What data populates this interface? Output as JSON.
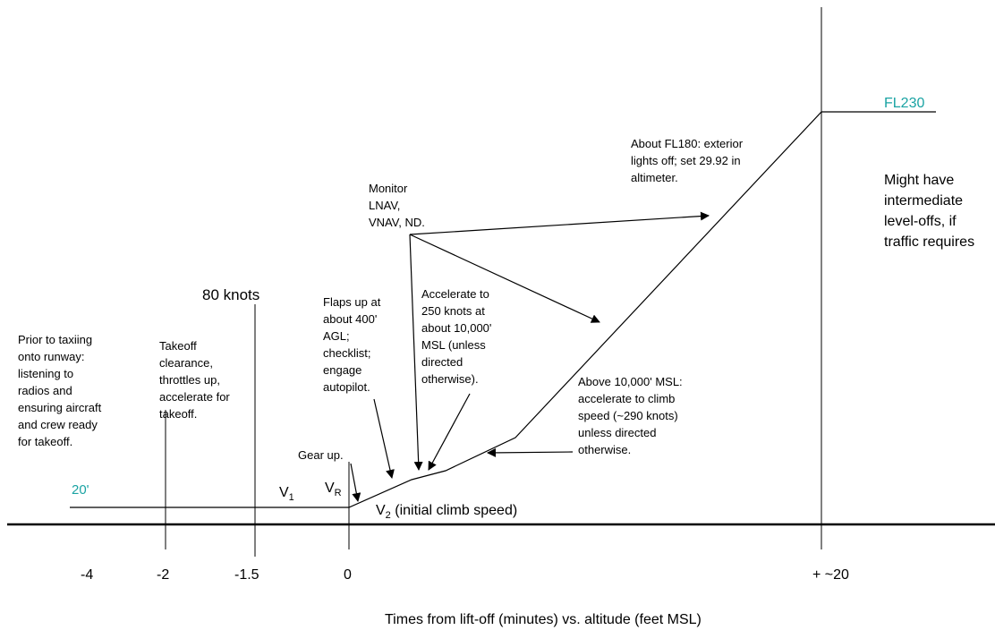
{
  "colors": {
    "line": "#000000",
    "accent": "#1aa3a3"
  },
  "start_altitude": "20'",
  "end_altitude": "FL230",
  "markers": {
    "eighty_knots": "80 knots",
    "v1": "V",
    "v1_sub": "1",
    "vr": "V",
    "vr_sub": "R",
    "v2": "V",
    "v2_sub": "2",
    "v2_suffix": " (initial climb speed)"
  },
  "axis": {
    "ticks": [
      "-4",
      "-2",
      "-1.5",
      "0",
      "+ ~20"
    ],
    "caption": "Times from lift-off (minutes) vs. altitude (feet MSL)"
  },
  "notes": {
    "prior_taxi": [
      "Prior to taxiing",
      "onto runway:",
      "listening to",
      "radios and",
      "ensuring aircraft",
      "and crew ready",
      "for takeoff."
    ],
    "takeoff_clearance": [
      "Takeoff",
      "clearance,",
      "throttles up,",
      "accelerate for",
      "takeoff."
    ],
    "gear_up": [
      "Gear up."
    ],
    "flaps_up": [
      "Flaps up at",
      "about 400'",
      "AGL;",
      "checklist;",
      "engage",
      "autopilot."
    ],
    "monitor": [
      "Monitor",
      "LNAV,",
      "VNAV, ND."
    ],
    "accelerate_250": [
      "Accelerate to",
      "250 knots at",
      "about 10,000'",
      "MSL (unless",
      "directed",
      "otherwise)."
    ],
    "above_10000": [
      "Above 10,000' MSL:",
      "accelerate to climb",
      "speed (~290 knots)",
      "unless directed",
      "otherwise."
    ],
    "fl180": [
      "About FL180: exterior",
      "lights off; set 29.92 in",
      "altimeter."
    ],
    "level_offs": [
      "Might have",
      "intermediate",
      "level-offs, if",
      "traffic requires"
    ]
  }
}
